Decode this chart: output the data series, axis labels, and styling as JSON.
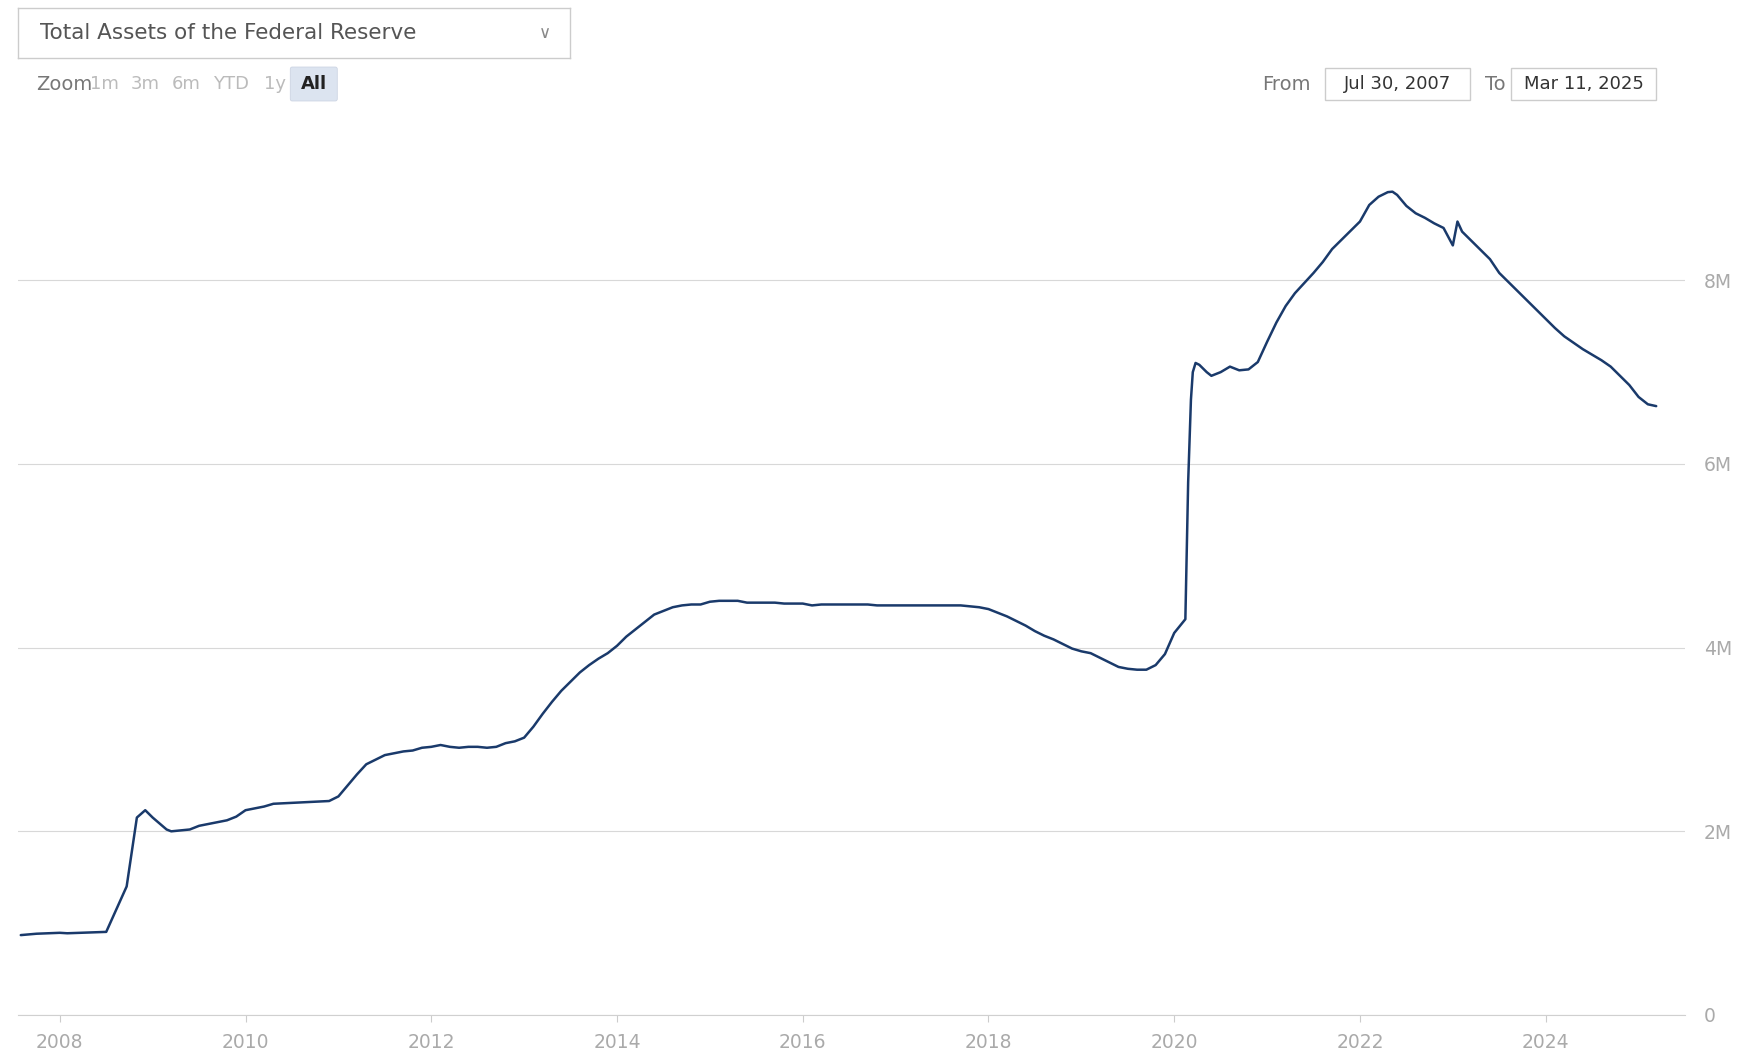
{
  "title": "Total Assets of the Federal Reserve",
  "line_color": "#1a3a6b",
  "line_width": 1.8,
  "background_color": "#ffffff",
  "chart_bg_color": "#ffffff",
  "grid_color": "#d8d8d8",
  "y_tick_labels": [
    "0",
    "2M",
    "4M",
    "6M",
    "8M"
  ],
  "y_tick_values": [
    0,
    2000000,
    4000000,
    6000000,
    8000000
  ],
  "y_label_color": "#aaaaaa",
  "x_tick_color": "#aaaaaa",
  "ylim": [
    0,
    9800000
  ],
  "xlim": [
    2007.55,
    2025.5
  ],
  "date_from": "Jul 30, 2007",
  "date_to": "Mar 11, 2025",
  "zoom_buttons": [
    "1m",
    "3m",
    "6m",
    "YTD",
    "1y",
    "All"
  ],
  "zoom_active": "All",
  "data_points": [
    [
      2007.58,
      870000
    ],
    [
      2007.75,
      885000
    ],
    [
      2008.0,
      895000
    ],
    [
      2008.08,
      890000
    ],
    [
      2008.5,
      905000
    ],
    [
      2008.72,
      1400000
    ],
    [
      2008.83,
      2150000
    ],
    [
      2008.92,
      2230000
    ],
    [
      2009.0,
      2150000
    ],
    [
      2009.08,
      2080000
    ],
    [
      2009.15,
      2020000
    ],
    [
      2009.2,
      2000000
    ],
    [
      2009.3,
      2010000
    ],
    [
      2009.4,
      2020000
    ],
    [
      2009.5,
      2060000
    ],
    [
      2009.6,
      2080000
    ],
    [
      2009.7,
      2100000
    ],
    [
      2009.8,
      2120000
    ],
    [
      2009.9,
      2160000
    ],
    [
      2010.0,
      2230000
    ],
    [
      2010.1,
      2250000
    ],
    [
      2010.2,
      2270000
    ],
    [
      2010.3,
      2300000
    ],
    [
      2010.5,
      2310000
    ],
    [
      2010.7,
      2320000
    ],
    [
      2010.9,
      2330000
    ],
    [
      2011.0,
      2380000
    ],
    [
      2011.1,
      2500000
    ],
    [
      2011.2,
      2620000
    ],
    [
      2011.3,
      2730000
    ],
    [
      2011.5,
      2830000
    ],
    [
      2011.7,
      2870000
    ],
    [
      2011.8,
      2880000
    ],
    [
      2011.9,
      2910000
    ],
    [
      2012.0,
      2920000
    ],
    [
      2012.1,
      2940000
    ],
    [
      2012.2,
      2920000
    ],
    [
      2012.3,
      2910000
    ],
    [
      2012.4,
      2920000
    ],
    [
      2012.5,
      2920000
    ],
    [
      2012.6,
      2910000
    ],
    [
      2012.7,
      2920000
    ],
    [
      2012.8,
      2960000
    ],
    [
      2012.9,
      2980000
    ],
    [
      2013.0,
      3020000
    ],
    [
      2013.1,
      3140000
    ],
    [
      2013.2,
      3280000
    ],
    [
      2013.3,
      3410000
    ],
    [
      2013.4,
      3530000
    ],
    [
      2013.5,
      3630000
    ],
    [
      2013.6,
      3730000
    ],
    [
      2013.7,
      3810000
    ],
    [
      2013.8,
      3880000
    ],
    [
      2013.9,
      3940000
    ],
    [
      2014.0,
      4020000
    ],
    [
      2014.1,
      4120000
    ],
    [
      2014.2,
      4200000
    ],
    [
      2014.3,
      4280000
    ],
    [
      2014.4,
      4360000
    ],
    [
      2014.5,
      4400000
    ],
    [
      2014.6,
      4440000
    ],
    [
      2014.7,
      4460000
    ],
    [
      2014.8,
      4470000
    ],
    [
      2014.9,
      4470000
    ],
    [
      2015.0,
      4500000
    ],
    [
      2015.1,
      4510000
    ],
    [
      2015.2,
      4510000
    ],
    [
      2015.3,
      4510000
    ],
    [
      2015.4,
      4490000
    ],
    [
      2015.5,
      4490000
    ],
    [
      2015.6,
      4490000
    ],
    [
      2015.7,
      4490000
    ],
    [
      2015.8,
      4480000
    ],
    [
      2015.9,
      4480000
    ],
    [
      2016.0,
      4480000
    ],
    [
      2016.1,
      4460000
    ],
    [
      2016.2,
      4470000
    ],
    [
      2016.3,
      4470000
    ],
    [
      2016.4,
      4470000
    ],
    [
      2016.5,
      4470000
    ],
    [
      2016.6,
      4470000
    ],
    [
      2016.7,
      4470000
    ],
    [
      2016.8,
      4460000
    ],
    [
      2016.9,
      4460000
    ],
    [
      2017.0,
      4460000
    ],
    [
      2017.1,
      4460000
    ],
    [
      2017.2,
      4460000
    ],
    [
      2017.3,
      4460000
    ],
    [
      2017.4,
      4460000
    ],
    [
      2017.5,
      4460000
    ],
    [
      2017.6,
      4460000
    ],
    [
      2017.7,
      4460000
    ],
    [
      2017.8,
      4450000
    ],
    [
      2017.9,
      4440000
    ],
    [
      2018.0,
      4420000
    ],
    [
      2018.1,
      4380000
    ],
    [
      2018.2,
      4340000
    ],
    [
      2018.3,
      4290000
    ],
    [
      2018.4,
      4240000
    ],
    [
      2018.5,
      4180000
    ],
    [
      2018.6,
      4130000
    ],
    [
      2018.7,
      4090000
    ],
    [
      2018.8,
      4040000
    ],
    [
      2018.9,
      3990000
    ],
    [
      2019.0,
      3960000
    ],
    [
      2019.1,
      3940000
    ],
    [
      2019.2,
      3890000
    ],
    [
      2019.3,
      3840000
    ],
    [
      2019.4,
      3790000
    ],
    [
      2019.5,
      3770000
    ],
    [
      2019.6,
      3760000
    ],
    [
      2019.7,
      3760000
    ],
    [
      2019.8,
      3810000
    ],
    [
      2019.9,
      3930000
    ],
    [
      2020.0,
      4160000
    ],
    [
      2020.12,
      4310000
    ],
    [
      2020.15,
      5800000
    ],
    [
      2020.18,
      6700000
    ],
    [
      2020.2,
      7000000
    ],
    [
      2020.23,
      7100000
    ],
    [
      2020.27,
      7080000
    ],
    [
      2020.35,
      7000000
    ],
    [
      2020.4,
      6960000
    ],
    [
      2020.5,
      7000000
    ],
    [
      2020.6,
      7060000
    ],
    [
      2020.7,
      7020000
    ],
    [
      2020.8,
      7030000
    ],
    [
      2020.9,
      7110000
    ],
    [
      2021.0,
      7330000
    ],
    [
      2021.1,
      7540000
    ],
    [
      2021.2,
      7720000
    ],
    [
      2021.3,
      7860000
    ],
    [
      2021.4,
      7970000
    ],
    [
      2021.5,
      8080000
    ],
    [
      2021.6,
      8200000
    ],
    [
      2021.7,
      8340000
    ],
    [
      2021.8,
      8440000
    ],
    [
      2021.9,
      8540000
    ],
    [
      2022.0,
      8640000
    ],
    [
      2022.1,
      8820000
    ],
    [
      2022.2,
      8910000
    ],
    [
      2022.3,
      8960000
    ],
    [
      2022.35,
      8965000
    ],
    [
      2022.4,
      8930000
    ],
    [
      2022.45,
      8870000
    ],
    [
      2022.5,
      8810000
    ],
    [
      2022.6,
      8730000
    ],
    [
      2022.7,
      8680000
    ],
    [
      2022.8,
      8620000
    ],
    [
      2022.9,
      8570000
    ],
    [
      2023.0,
      8380000
    ],
    [
      2023.05,
      8640000
    ],
    [
      2023.1,
      8530000
    ],
    [
      2023.2,
      8430000
    ],
    [
      2023.3,
      8330000
    ],
    [
      2023.4,
      8230000
    ],
    [
      2023.5,
      8080000
    ],
    [
      2023.6,
      7980000
    ],
    [
      2023.7,
      7880000
    ],
    [
      2023.8,
      7780000
    ],
    [
      2023.9,
      7680000
    ],
    [
      2024.0,
      7580000
    ],
    [
      2024.1,
      7480000
    ],
    [
      2024.2,
      7390000
    ],
    [
      2024.3,
      7320000
    ],
    [
      2024.4,
      7250000
    ],
    [
      2024.5,
      7190000
    ],
    [
      2024.6,
      7130000
    ],
    [
      2024.7,
      7060000
    ],
    [
      2024.8,
      6960000
    ],
    [
      2024.9,
      6860000
    ],
    [
      2025.0,
      6730000
    ],
    [
      2025.1,
      6650000
    ],
    [
      2025.19,
      6630000
    ]
  ]
}
